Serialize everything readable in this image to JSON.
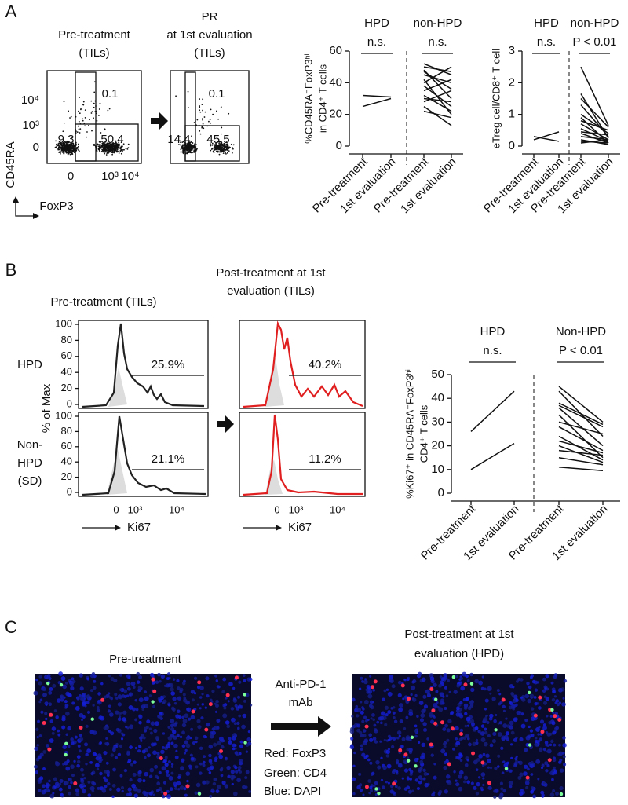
{
  "panel_a": {
    "label": "A",
    "flow_pre": {
      "title": [
        "Pre-treatment",
        "(TILs)"
      ],
      "gates": [
        "0.1",
        "9.3",
        "50.4"
      ]
    },
    "flow_post": {
      "title": [
        "PR",
        "at 1st evaluation",
        "(TILs)"
      ],
      "gates": [
        "0.1",
        "14.4",
        "45.5"
      ]
    },
    "flow_yticks": [
      "10⁴",
      "10³",
      "0"
    ],
    "flow_xticks": [
      "0",
      "10³",
      "10⁴"
    ],
    "y_axis_label": "CD45RA",
    "x_axis_label": "FoxP3",
    "plots": [
      {
        "ylabel": [
          "%CD45RA⁻FoxP3ʰⁱ",
          "in CD4⁺ T cells"
        ],
        "ylim": [
          0,
          60
        ],
        "yticks": [
          0,
          20,
          40,
          60
        ],
        "categories": [
          "Pre-treatment",
          "1st evaluation",
          "Pre-treatment",
          "1st evaluation"
        ],
        "groups": [
          {
            "name": "HPD",
            "note": "n.s.",
            "pairs": [
              [
                25,
                30
              ],
              [
                32,
                31
              ]
            ]
          },
          {
            "name": "non-HPD",
            "note": "n.s.",
            "pairs": [
              [
                52,
                45
              ],
              [
                50,
                47
              ],
              [
                48,
                30
              ],
              [
                47,
                36
              ],
              [
                45,
                40
              ],
              [
                42,
                20
              ],
              [
                40,
                50
              ],
              [
                38,
                25
              ],
              [
                35,
                42
              ],
              [
                32,
                22
              ],
              [
                30,
                28
              ],
              [
                28,
                35
              ],
              [
                25,
                13
              ],
              [
                22,
                18
              ]
            ]
          }
        ]
      },
      {
        "ylabel": [
          "eTreg cell/CD8⁺ T cell"
        ],
        "ylim": [
          0,
          3
        ],
        "yticks": [
          0,
          1,
          2,
          3
        ],
        "categories": [
          "Pre-treatment",
          "1st evaluation",
          "Pre-treatment",
          "1st evaluation"
        ],
        "groups": [
          {
            "name": "HPD",
            "note": "n.s.",
            "pairs": [
              [
                0.3,
                0.15
              ],
              [
                0.2,
                0.45
              ]
            ]
          },
          {
            "name": "non-HPD",
            "note": "P < 0.01",
            "pairs": [
              [
                2.5,
                0.65
              ],
              [
                1.65,
                0.25
              ],
              [
                1.5,
                0.6
              ],
              [
                1.3,
                0.3
              ],
              [
                1.0,
                0.4
              ],
              [
                0.9,
                0.1
              ],
              [
                0.8,
                0.5
              ],
              [
                0.7,
                0.2
              ],
              [
                0.55,
                0.15
              ],
              [
                0.45,
                0.35
              ],
              [
                0.4,
                0.1
              ],
              [
                0.3,
                0.2
              ],
              [
                0.2,
                0.05
              ],
              [
                0.15,
                0.1
              ],
              [
                0.1,
                0.2
              ]
            ]
          }
        ]
      }
    ]
  },
  "panel_b": {
    "label": "B",
    "hist_pre_title": "Pre-treatment (TILs)",
    "hist_post_title": [
      "Post-treatment at 1st",
      "evaluation (TILs)"
    ],
    "row_labels": [
      [
        "HPD"
      ],
      [
        "Non-",
        "HPD",
        "(SD)"
      ]
    ],
    "hist_ylabel": "% of Max",
    "hist_yticks": [
      0,
      20,
      40,
      60,
      80,
      100
    ],
    "hist_xticks": [
      "0",
      "10³",
      "10⁴"
    ],
    "hist_xlabel": "Ki67",
    "gates": [
      [
        "25.9%",
        "40.2%"
      ],
      [
        "21.1%",
        "11.2%"
      ]
    ],
    "plot": {
      "ylabel": [
        "%Ki67⁺ in CD45RA⁻FoxP3ʰⁱ",
        "CD4⁺ T cells"
      ],
      "ylim": [
        0,
        50
      ],
      "yticks": [
        0,
        10,
        20,
        30,
        40,
        50
      ],
      "categories": [
        "Pre-treatment",
        "1st evaluation",
        "Pre-treatment",
        "1st evaluation"
      ],
      "groups": [
        {
          "name": "HPD",
          "note": "n.s.",
          "pairs": [
            [
              26,
              43
            ],
            [
              10,
              21
            ]
          ]
        },
        {
          "name": "Non-HPD",
          "note": "P < 0.01",
          "pairs": [
            [
              45,
              30
            ],
            [
              43,
              24
            ],
            [
              38,
              29
            ],
            [
              37,
              28
            ],
            [
              36,
              20
            ],
            [
              33,
              15
            ],
            [
              30,
              25
            ],
            [
              28,
              18
            ],
            [
              24,
              14
            ],
            [
              22,
              17
            ],
            [
              20,
              13
            ],
            [
              18,
              16
            ],
            [
              15,
              12
            ],
            [
              11,
              9.5
            ]
          ]
        }
      ]
    }
  },
  "panel_c": {
    "label": "C",
    "pre_title": "Pre-treatment",
    "post_title": [
      "Post-treatment at 1st",
      "evaluation (HPD)"
    ],
    "treatment": [
      "Anti-PD-1",
      "mAb"
    ],
    "legend": [
      "Red: FoxP3",
      "Green: CD4",
      "Blue: DAPI"
    ]
  }
}
